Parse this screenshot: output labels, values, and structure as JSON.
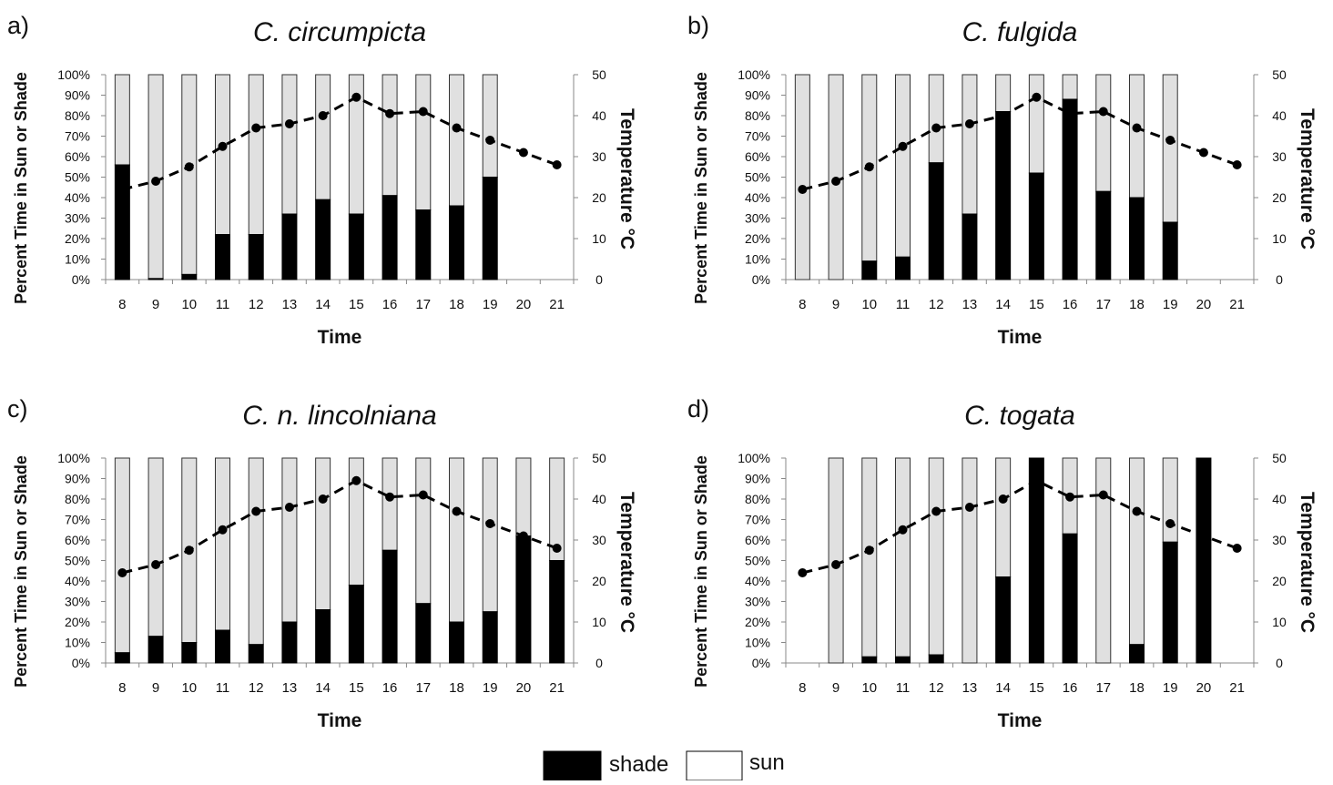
{
  "chart_data": [
    {
      "type": "bar",
      "panel_label": "a)",
      "title": "C. circumpicta",
      "xlabel": "Time",
      "ylabel": "Percent Time in Sun or Shade",
      "y2label": "Temperature °C",
      "categories": [
        8,
        9,
        10,
        11,
        12,
        13,
        14,
        15,
        16,
        17,
        18,
        19,
        20,
        21
      ],
      "y_ticks": [
        "0%",
        "10%",
        "20%",
        "30%",
        "40%",
        "50%",
        "60%",
        "70%",
        "80%",
        "90%",
        "100%"
      ],
      "y2_ticks": [
        0,
        10,
        20,
        30,
        40,
        50
      ],
      "ylim": [
        0,
        100
      ],
      "y2lim": [
        0,
        50
      ],
      "series": [
        {
          "name": "shade",
          "values": [
            56,
            0.5,
            2.5,
            22,
            22,
            32,
            39,
            32,
            41,
            34,
            36,
            50,
            null,
            null
          ]
        },
        {
          "name": "sun",
          "values": [
            44,
            99.5,
            97.5,
            78,
            78,
            68,
            61,
            68,
            59,
            66,
            64,
            50,
            null,
            null
          ]
        }
      ],
      "temperature": [
        22,
        24,
        27.5,
        32.5,
        37,
        38,
        40,
        44.5,
        40.5,
        41,
        37,
        34,
        31,
        28
      ]
    },
    {
      "type": "bar",
      "panel_label": "b)",
      "title": "C. fulgida",
      "xlabel": "Time",
      "ylabel": "Percent Time in Sun or Shade",
      "y2label": "Temperature °C",
      "categories": [
        8,
        9,
        10,
        11,
        12,
        13,
        14,
        15,
        16,
        17,
        18,
        19,
        20,
        21
      ],
      "y_ticks": [
        "0%",
        "10%",
        "20%",
        "30%",
        "40%",
        "50%",
        "60%",
        "70%",
        "80%",
        "90%",
        "100%"
      ],
      "y2_ticks": [
        0,
        10,
        20,
        30,
        40,
        50
      ],
      "ylim": [
        0,
        100
      ],
      "y2lim": [
        0,
        50
      ],
      "series": [
        {
          "name": "shade",
          "values": [
            0,
            0,
            9,
            11,
            57,
            32,
            82,
            52,
            88,
            43,
            40,
            28,
            null,
            null
          ]
        },
        {
          "name": "sun",
          "values": [
            100,
            100,
            91,
            89,
            43,
            68,
            18,
            48,
            12,
            57,
            60,
            72,
            null,
            null
          ]
        }
      ],
      "temperature": [
        22,
        24,
        27.5,
        32.5,
        37,
        38,
        40,
        44.5,
        40.5,
        41,
        37,
        34,
        31,
        28
      ]
    },
    {
      "type": "bar",
      "panel_label": "c)",
      "title": "C. n. lincolniana",
      "xlabel": "Time",
      "ylabel": "Percent Time in Sun or Shade",
      "y2label": "Temperature °C",
      "categories": [
        8,
        9,
        10,
        11,
        12,
        13,
        14,
        15,
        16,
        17,
        18,
        19,
        20,
        21
      ],
      "y_ticks": [
        "0%",
        "10%",
        "20%",
        "30%",
        "40%",
        "50%",
        "60%",
        "70%",
        "80%",
        "90%",
        "100%"
      ],
      "y2_ticks": [
        0,
        10,
        20,
        30,
        40,
        50
      ],
      "ylim": [
        0,
        100
      ],
      "y2lim": [
        0,
        50
      ],
      "series": [
        {
          "name": "shade",
          "values": [
            5,
            13,
            10,
            16,
            9,
            20,
            26,
            38,
            55,
            29,
            20,
            25,
            62,
            50
          ]
        },
        {
          "name": "sun",
          "values": [
            95,
            87,
            90,
            84,
            91,
            80,
            74,
            62,
            45,
            71,
            80,
            75,
            38,
            50
          ]
        }
      ],
      "temperature": [
        22,
        24,
        27.5,
        32.5,
        37,
        38,
        40,
        44.5,
        40.5,
        41,
        37,
        34,
        31,
        28
      ]
    },
    {
      "type": "bar",
      "panel_label": "d)",
      "title": "C. togata",
      "xlabel": "Time",
      "ylabel": "Percent Time in Sun or Shade",
      "y2label": "Temperature °C",
      "categories": [
        8,
        9,
        10,
        11,
        12,
        13,
        14,
        15,
        16,
        17,
        18,
        19,
        20,
        21
      ],
      "y_ticks": [
        "0%",
        "10%",
        "20%",
        "30%",
        "40%",
        "50%",
        "60%",
        "70%",
        "80%",
        "90%",
        "100%"
      ],
      "y2_ticks": [
        0,
        10,
        20,
        30,
        40,
        50
      ],
      "ylim": [
        0,
        100
      ],
      "y2lim": [
        0,
        50
      ],
      "series": [
        {
          "name": "shade",
          "values": [
            null,
            0,
            3,
            3,
            4,
            0,
            42,
            100,
            63,
            0,
            9,
            59,
            100,
            null
          ]
        },
        {
          "name": "sun",
          "values": [
            null,
            100,
            97,
            97,
            96,
            100,
            58,
            0,
            37,
            100,
            91,
            41,
            0,
            null
          ]
        }
      ],
      "temperature": [
        22,
        24,
        27.5,
        32.5,
        37,
        38,
        40,
        44.5,
        40.5,
        41,
        37,
        34,
        31,
        28
      ]
    }
  ],
  "legend": {
    "position": "bottom-center",
    "items": [
      {
        "label": "shade",
        "color": "#000000"
      },
      {
        "label": "sun",
        "color": "#ffffff"
      }
    ]
  },
  "colors": {
    "shade": "#000000",
    "sun": "#e0e0e0",
    "bar_border": "#333333",
    "temperature": "#000000"
  }
}
